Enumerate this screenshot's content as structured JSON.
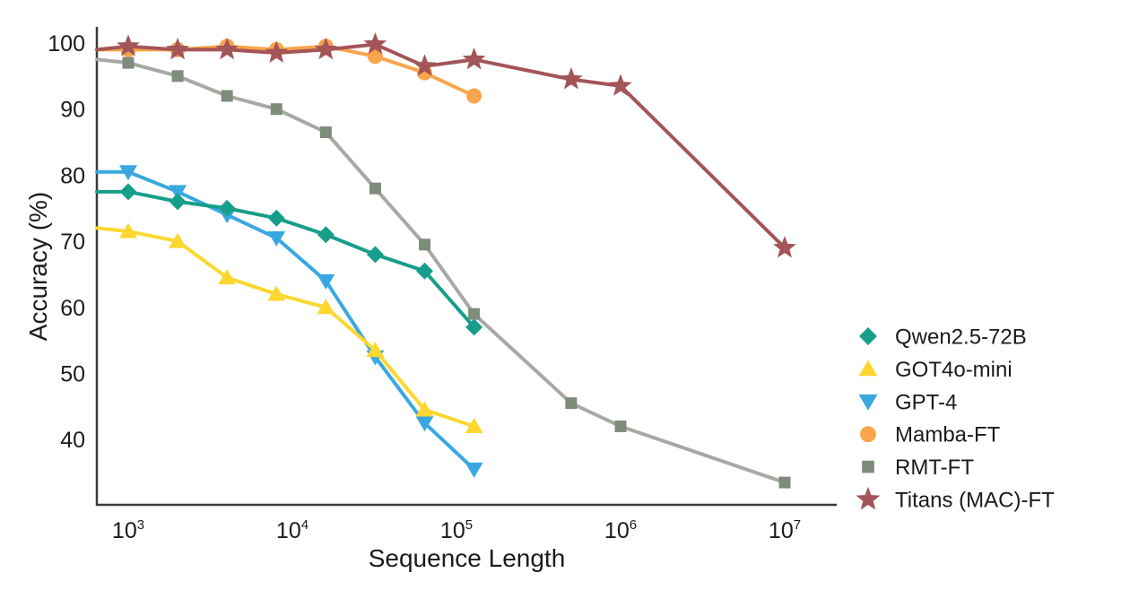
{
  "figure": {
    "background": "#FFFFFF",
    "text_color": "#1B1B1B",
    "axis_color": "#3A3A3A"
  },
  "chart_data": {
    "type": "line",
    "title": "",
    "xlabel": "Sequence Length",
    "ylabel": "Accuracy (%)",
    "x_scale": "log10",
    "grid": false,
    "legend_position": "right-outside",
    "xlim_tokens": [
      644,
      21000000
    ],
    "ylim": [
      30,
      102.5
    ],
    "y_ticks": [
      100,
      90,
      80,
      70,
      60,
      50,
      40
    ],
    "x_ticks": [
      {
        "mantissa": "10",
        "exponent": "3",
        "value": 1000
      },
      {
        "mantissa": "10",
        "exponent": "4",
        "value": 10000
      },
      {
        "mantissa": "10",
        "exponent": "5",
        "value": 100000
      },
      {
        "mantissa": "10",
        "exponent": "6",
        "value": 1000000
      },
      {
        "mantissa": "10",
        "exponent": "7",
        "value": 10000000
      }
    ],
    "x_points": {
      "labels": [
        "0k-left-edge",
        "1k",
        "2k",
        "4k",
        "8k",
        "16k",
        "32k",
        "64k",
        "128k",
        "500k",
        "1M",
        "10M"
      ],
      "tokens": [
        644,
        1000,
        2000,
        4000,
        8000,
        16000,
        32000,
        64000,
        128000,
        500000,
        1000000,
        10000000
      ],
      "note": "first point of each line sits on the y-axis at the plot's left edge (no marker drawn there)"
    },
    "series": [
      {
        "id": "qwen25-72b",
        "name": "Qwen2.5-72B",
        "marker": "diamond",
        "color": "#179E8B",
        "z": 2,
        "values": [
          77.5,
          77.5,
          76,
          75,
          73.5,
          71,
          68,
          65.5,
          57,
          null,
          null,
          null
        ]
      },
      {
        "id": "got4o-mini",
        "name": "GOT4o-mini",
        "marker": "triangle-up",
        "color": "#FDD72F",
        "z": 3,
        "values": [
          72,
          71.5,
          70,
          64.5,
          62,
          60,
          53.5,
          44.5,
          42,
          null,
          null,
          null
        ]
      },
      {
        "id": "gpt-4",
        "name": "GPT-4",
        "marker": "triangle-down",
        "color": "#3AA8E0",
        "z": 1,
        "values": [
          80.5,
          80.5,
          77.5,
          74,
          70.5,
          64,
          52.5,
          42.5,
          35.5,
          null,
          null,
          null
        ]
      },
      {
        "id": "mamba-ft",
        "name": "Mamba-FT",
        "marker": "circle",
        "color": "#F9A54B",
        "z": 4,
        "values": [
          99,
          99,
          99,
          99.5,
          99,
          99.5,
          98,
          95.5,
          92,
          null,
          null,
          null
        ]
      },
      {
        "id": "rmt-ft",
        "name": "RMT-FT",
        "marker": "square",
        "color": "#A8A8A4",
        "marker_color": "#7E8C7C",
        "z": 5,
        "values": [
          97.5,
          97,
          95,
          92,
          90,
          86.5,
          78,
          69.5,
          59,
          45.5,
          42,
          33.5
        ]
      },
      {
        "id": "titans-mac-ft",
        "name": "Titans (MAC)-FT",
        "marker": "star",
        "color": "#A45557",
        "z": 6,
        "values": [
          99,
          99.5,
          99,
          99,
          98.5,
          99,
          99.8,
          96.5,
          97.5,
          94.5,
          93.5,
          69
        ]
      }
    ]
  }
}
